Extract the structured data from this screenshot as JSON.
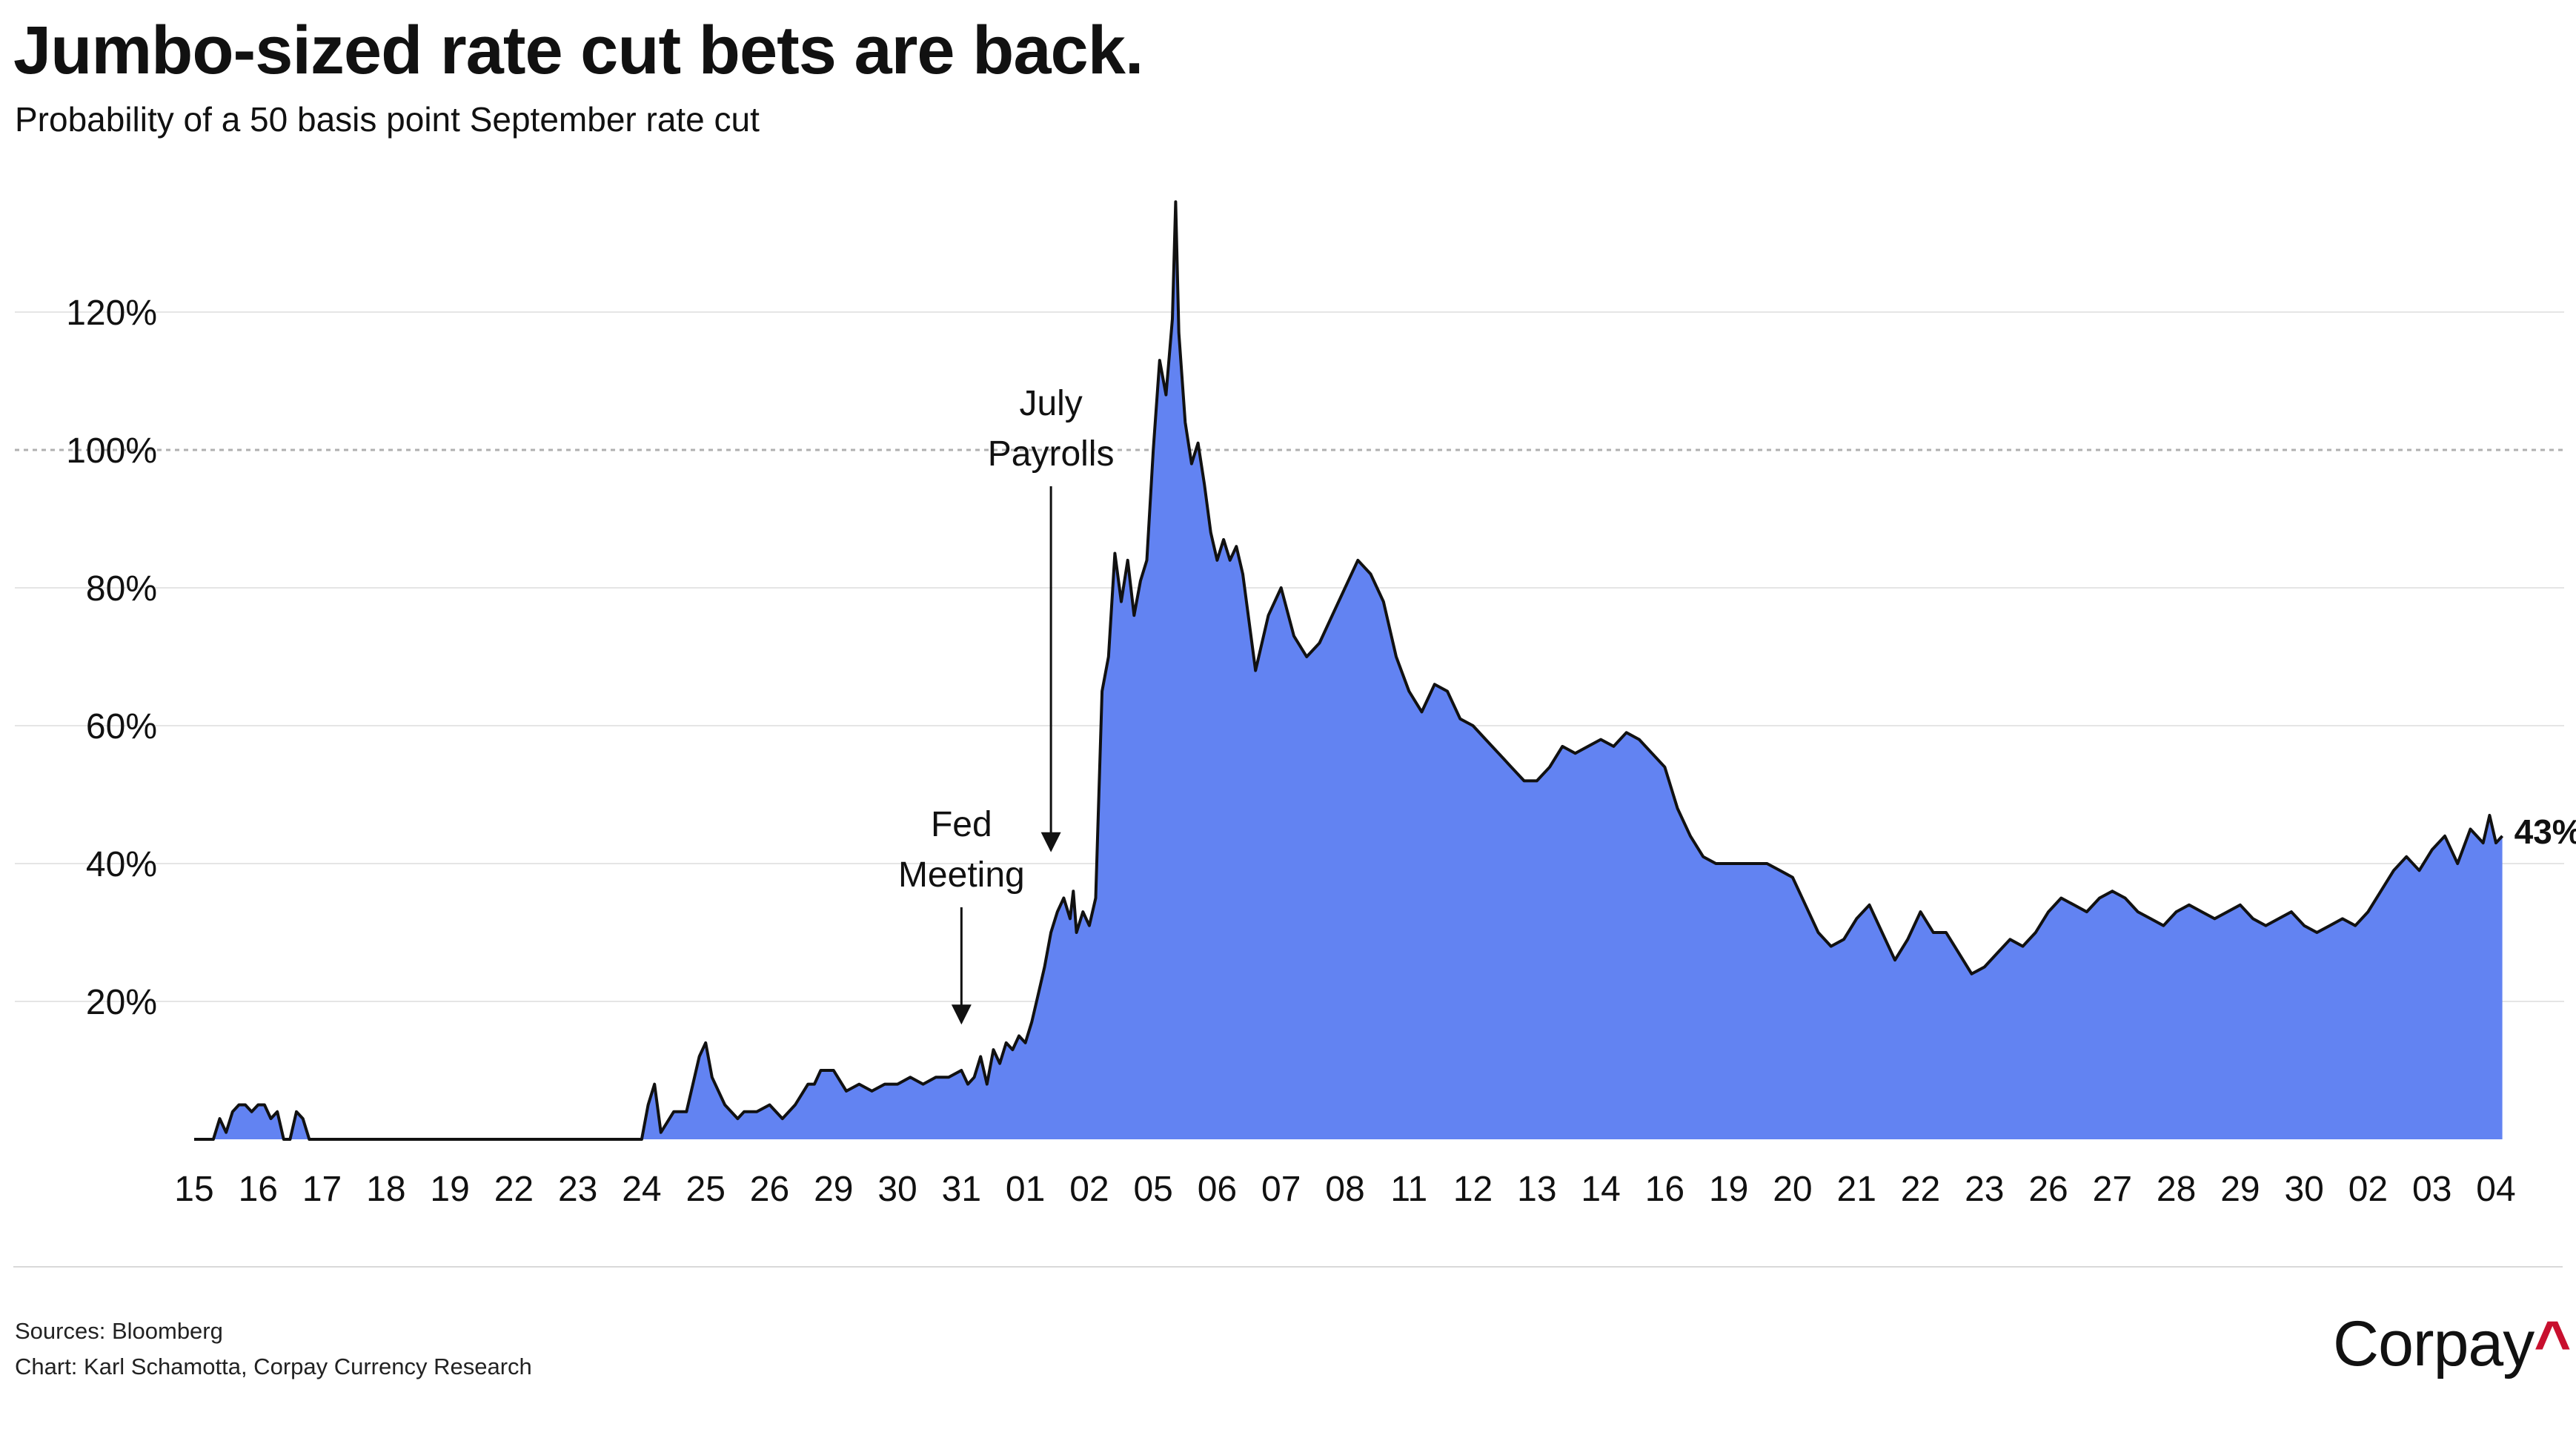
{
  "title": "Jumbo-sized rate cut bets are back.",
  "subtitle": "Probability of a 50 basis point September rate cut",
  "footer": {
    "sources": "Sources: Bloomberg",
    "credit": "Chart: Karl Schamotta, Corpay Currency Research"
  },
  "logo": {
    "text": "Corpay",
    "mark": "^",
    "mark_color": "#c8102e"
  },
  "colors": {
    "area": "#6283f2",
    "line": "#111111",
    "grid": "#e5e5e5",
    "reference": "#b0b0b0"
  },
  "chart_data": {
    "type": "area",
    "title": "Jumbo-sized rate cut bets are back.",
    "subtitle": "Probability of a 50 basis point September rate cut",
    "x_unit": "trading day index",
    "x_tick_labels": [
      "15",
      "16",
      "17",
      "18",
      "19",
      "22",
      "23",
      "24",
      "25",
      "26",
      "29",
      "30",
      "31",
      "01",
      "02",
      "05",
      "06",
      "07",
      "08",
      "11",
      "12",
      "13",
      "14",
      "16",
      "19",
      "20",
      "21",
      "22",
      "23",
      "26",
      "27",
      "28",
      "29",
      "30",
      "02",
      "03",
      "04"
    ],
    "y_ticks": [
      20,
      40,
      60,
      80,
      100,
      120
    ],
    "y_tick_labels": [
      "20%",
      "40%",
      "60%",
      "80%",
      "100%",
      "120%"
    ],
    "ylim": [
      0,
      138
    ],
    "xlim": [
      0,
      36.3
    ],
    "reference_line": 100,
    "grid": true,
    "series": [
      {
        "values": [
          [
            0.0,
            0
          ],
          [
            0.3,
            0
          ],
          [
            0.4,
            3
          ],
          [
            0.5,
            1
          ],
          [
            0.6,
            4
          ],
          [
            0.7,
            5
          ],
          [
            0.8,
            5
          ],
          [
            0.9,
            4
          ],
          [
            1.0,
            5
          ],
          [
            1.1,
            5
          ],
          [
            1.2,
            3
          ],
          [
            1.3,
            4
          ],
          [
            1.4,
            0
          ],
          [
            1.5,
            0
          ],
          [
            1.6,
            4
          ],
          [
            1.7,
            3
          ],
          [
            1.8,
            0
          ],
          [
            7.0,
            0
          ],
          [
            7.1,
            5
          ],
          [
            7.2,
            8
          ],
          [
            7.3,
            1
          ],
          [
            7.5,
            4
          ],
          [
            7.7,
            4
          ],
          [
            7.8,
            8
          ],
          [
            7.9,
            12
          ],
          [
            8.0,
            14
          ],
          [
            8.1,
            9
          ],
          [
            8.3,
            5
          ],
          [
            8.5,
            3
          ],
          [
            8.6,
            4
          ],
          [
            8.8,
            4
          ],
          [
            9.0,
            5
          ],
          [
            9.2,
            3
          ],
          [
            9.4,
            5
          ],
          [
            9.6,
            8
          ],
          [
            9.7,
            8
          ],
          [
            9.8,
            10
          ],
          [
            10.0,
            10
          ],
          [
            10.2,
            7
          ],
          [
            10.4,
            8
          ],
          [
            10.6,
            7
          ],
          [
            10.8,
            8
          ],
          [
            11.0,
            8
          ],
          [
            11.2,
            9
          ],
          [
            11.4,
            8
          ],
          [
            11.6,
            9
          ],
          [
            11.8,
            9
          ],
          [
            12.0,
            10
          ],
          [
            12.1,
            8
          ],
          [
            12.2,
            9
          ],
          [
            12.3,
            12
          ],
          [
            12.4,
            8
          ],
          [
            12.5,
            13
          ],
          [
            12.6,
            11
          ],
          [
            12.7,
            14
          ],
          [
            12.8,
            13
          ],
          [
            12.9,
            15
          ],
          [
            13.0,
            14
          ],
          [
            13.1,
            17
          ],
          [
            13.2,
            21
          ],
          [
            13.3,
            25
          ],
          [
            13.4,
            30
          ],
          [
            13.5,
            33
          ],
          [
            13.6,
            35
          ],
          [
            13.7,
            32
          ],
          [
            13.75,
            36
          ],
          [
            13.8,
            30
          ],
          [
            13.9,
            33
          ],
          [
            14.0,
            31
          ],
          [
            14.1,
            35
          ],
          [
            14.2,
            65
          ],
          [
            14.3,
            70
          ],
          [
            14.4,
            85
          ],
          [
            14.5,
            78
          ],
          [
            14.6,
            84
          ],
          [
            14.7,
            76
          ],
          [
            14.8,
            81
          ],
          [
            14.9,
            84
          ],
          [
            15.0,
            100
          ],
          [
            15.1,
            113
          ],
          [
            15.2,
            108
          ],
          [
            15.3,
            119
          ],
          [
            15.35,
            136
          ],
          [
            15.4,
            117
          ],
          [
            15.5,
            104
          ],
          [
            15.6,
            98
          ],
          [
            15.7,
            101
          ],
          [
            15.8,
            95
          ],
          [
            15.9,
            88
          ],
          [
            16.0,
            84
          ],
          [
            16.1,
            87
          ],
          [
            16.2,
            84
          ],
          [
            16.3,
            86
          ],
          [
            16.4,
            82
          ],
          [
            16.6,
            68
          ],
          [
            16.8,
            76
          ],
          [
            17.0,
            80
          ],
          [
            17.2,
            73
          ],
          [
            17.4,
            70
          ],
          [
            17.6,
            72
          ],
          [
            17.8,
            76
          ],
          [
            18.0,
            80
          ],
          [
            18.2,
            84
          ],
          [
            18.4,
            82
          ],
          [
            18.6,
            78
          ],
          [
            18.8,
            70
          ],
          [
            19.0,
            65
          ],
          [
            19.2,
            62
          ],
          [
            19.4,
            66
          ],
          [
            19.6,
            65
          ],
          [
            19.8,
            61
          ],
          [
            20.0,
            60
          ],
          [
            20.2,
            58
          ],
          [
            20.4,
            56
          ],
          [
            20.6,
            54
          ],
          [
            20.8,
            52
          ],
          [
            21.0,
            52
          ],
          [
            21.2,
            54
          ],
          [
            21.4,
            57
          ],
          [
            21.6,
            56
          ],
          [
            21.8,
            57
          ],
          [
            22.0,
            58
          ],
          [
            22.2,
            57
          ],
          [
            22.4,
            59
          ],
          [
            22.6,
            58
          ],
          [
            22.8,
            56
          ],
          [
            23.0,
            54
          ],
          [
            23.2,
            48
          ],
          [
            23.4,
            44
          ],
          [
            23.6,
            41
          ],
          [
            23.8,
            40
          ],
          [
            24.0,
            40
          ],
          [
            24.2,
            40
          ],
          [
            24.4,
            40
          ],
          [
            24.6,
            40
          ],
          [
            24.8,
            39
          ],
          [
            25.0,
            38
          ],
          [
            25.2,
            34
          ],
          [
            25.4,
            30
          ],
          [
            25.6,
            28
          ],
          [
            25.8,
            29
          ],
          [
            26.0,
            32
          ],
          [
            26.2,
            34
          ],
          [
            26.4,
            30
          ],
          [
            26.6,
            26
          ],
          [
            26.8,
            29
          ],
          [
            27.0,
            33
          ],
          [
            27.2,
            30
          ],
          [
            27.4,
            30
          ],
          [
            27.6,
            27
          ],
          [
            27.8,
            24
          ],
          [
            28.0,
            25
          ],
          [
            28.2,
            27
          ],
          [
            28.4,
            29
          ],
          [
            28.6,
            28
          ],
          [
            28.8,
            30
          ],
          [
            29.0,
            33
          ],
          [
            29.2,
            35
          ],
          [
            29.4,
            34
          ],
          [
            29.6,
            33
          ],
          [
            29.8,
            35
          ],
          [
            30.0,
            36
          ],
          [
            30.2,
            35
          ],
          [
            30.4,
            33
          ],
          [
            30.6,
            32
          ],
          [
            30.8,
            31
          ],
          [
            31.0,
            33
          ],
          [
            31.2,
            34
          ],
          [
            31.4,
            33
          ],
          [
            31.6,
            32
          ],
          [
            31.8,
            33
          ],
          [
            32.0,
            34
          ],
          [
            32.2,
            32
          ],
          [
            32.4,
            31
          ],
          [
            32.6,
            32
          ],
          [
            32.8,
            33
          ],
          [
            33.0,
            31
          ],
          [
            33.2,
            30
          ],
          [
            33.4,
            31
          ],
          [
            33.6,
            32
          ],
          [
            33.8,
            31
          ],
          [
            34.0,
            33
          ],
          [
            34.2,
            36
          ],
          [
            34.4,
            39
          ],
          [
            34.6,
            41
          ],
          [
            34.8,
            39
          ],
          [
            35.0,
            42
          ],
          [
            35.2,
            44
          ],
          [
            35.4,
            40
          ],
          [
            35.6,
            45
          ],
          [
            35.8,
            43
          ],
          [
            35.9,
            47
          ],
          [
            36.0,
            43
          ],
          [
            36.1,
            44
          ]
        ]
      }
    ],
    "annotations": [
      {
        "id": "fed",
        "lines": [
          "Fed",
          "Meeting"
        ],
        "x": 12.0,
        "arrow_to": 15
      },
      {
        "id": "payrolls",
        "lines": [
          "July",
          "Payrolls"
        ],
        "x": 13.4,
        "arrow_to": 40
      }
    ],
    "end_label": "43%"
  }
}
